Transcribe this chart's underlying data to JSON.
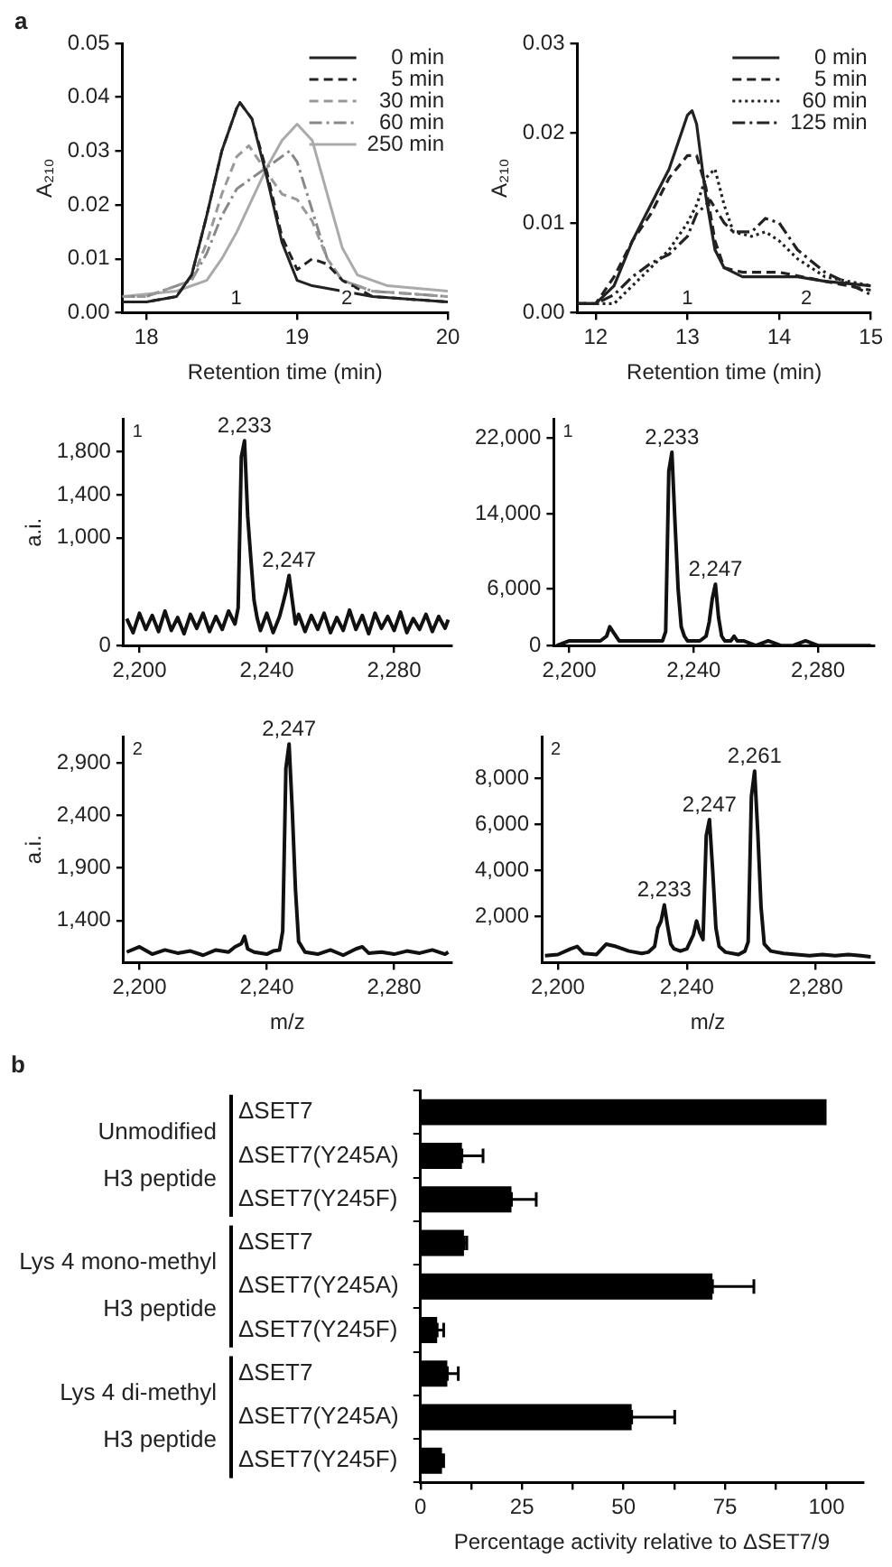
{
  "chart_data": [
    {
      "type": "line",
      "ylabel": "A₂₁₀",
      "xlabel": "Retention time (min)",
      "legend": "top right",
      "xlim": [
        17.84,
        20
      ],
      "xticks": [
        18,
        19,
        20
      ],
      "ylim": [
        0,
        0.05
      ],
      "yticks": [
        {
          "value": 0,
          "label": "0.00"
        },
        0.01,
        0.02,
        0.03,
        0.04,
        0.05
      ],
      "annotations": [
        "a",
        "1",
        "2"
      ],
      "series": [
        {
          "name": "0 min",
          "color": "#222222",
          "line_style": "solid",
          "x": [
            17.84,
            18.0,
            18.2,
            18.3,
            18.4,
            18.5,
            18.6,
            18.62,
            18.7,
            18.8,
            18.9,
            19.0,
            19.1,
            19.3,
            19.5,
            20.0
          ],
          "values": [
            0.002,
            0.002,
            0.003,
            0.007,
            0.018,
            0.03,
            0.038,
            0.039,
            0.036,
            0.025,
            0.013,
            0.006,
            0.005,
            0.004,
            0.003,
            0.002
          ]
        },
        {
          "name": "5 min",
          "color": "#222222",
          "line_style": "dashed",
          "x": [
            17.84,
            18.0,
            18.2,
            18.3,
            18.4,
            18.5,
            18.6,
            18.62,
            18.7,
            18.8,
            18.9,
            19.0,
            19.1,
            19.2,
            19.3,
            19.5,
            20.0
          ],
          "values": [
            0.002,
            0.002,
            0.003,
            0.007,
            0.018,
            0.03,
            0.038,
            0.039,
            0.036,
            0.026,
            0.014,
            0.008,
            0.01,
            0.009,
            0.006,
            0.003,
            0.002
          ]
        },
        {
          "name": "30 min",
          "color": "#999999",
          "line_style": "dashed",
          "x": [
            17.84,
            18.0,
            18.3,
            18.4,
            18.5,
            18.6,
            18.68,
            18.8,
            18.9,
            19.0,
            19.1,
            19.2,
            19.3,
            19.5,
            20.0
          ],
          "values": [
            0.003,
            0.003,
            0.006,
            0.013,
            0.022,
            0.029,
            0.031,
            0.026,
            0.022,
            0.021,
            0.017,
            0.01,
            0.006,
            0.004,
            0.003
          ]
        },
        {
          "name": "60 min",
          "color": "#888888",
          "line_style": "dashdot",
          "x": [
            17.84,
            18.0,
            18.3,
            18.4,
            18.5,
            18.6,
            18.7,
            18.8,
            18.9,
            18.95,
            19.0,
            19.1,
            19.2,
            19.3,
            19.5,
            20.0
          ],
          "values": [
            0.003,
            0.003,
            0.006,
            0.011,
            0.018,
            0.023,
            0.025,
            0.027,
            0.029,
            0.03,
            0.028,
            0.019,
            0.01,
            0.006,
            0.004,
            0.003
          ]
        },
        {
          "name": "250 min",
          "color": "#aaaaaa",
          "line_style": "solid",
          "x": [
            17.84,
            18.2,
            18.4,
            18.5,
            18.6,
            18.7,
            18.8,
            18.9,
            19.0,
            19.1,
            19.2,
            19.3,
            19.4,
            19.6,
            20.0
          ],
          "values": [
            0.003,
            0.004,
            0.006,
            0.01,
            0.015,
            0.021,
            0.027,
            0.032,
            0.035,
            0.032,
            0.022,
            0.012,
            0.007,
            0.005,
            0.004
          ]
        }
      ]
    },
    {
      "type": "line",
      "ylabel": "A₂₁₀",
      "xlabel": "Retention time (min)",
      "legend": "top right",
      "xlim": [
        11.8,
        15
      ],
      "xticks": [
        12,
        13,
        14,
        15
      ],
      "ylim": [
        0,
        0.03
      ],
      "yticks": [
        {
          "value": 0,
          "label": "0.00"
        },
        0.01,
        0.02,
        0.03
      ],
      "annotations": [
        "1",
        "2"
      ],
      "series": [
        {
          "name": "0 min",
          "color": "#222222",
          "line_style": "solid",
          "x": [
            11.8,
            12.0,
            12.2,
            12.4,
            12.6,
            12.8,
            12.9,
            13.0,
            13.05,
            13.1,
            13.2,
            13.3,
            13.4,
            13.6,
            14.0,
            14.2,
            14.5,
            15.0
          ],
          "values": [
            0.001,
            0.001,
            0.003,
            0.008,
            0.012,
            0.016,
            0.019,
            0.022,
            0.0225,
            0.021,
            0.013,
            0.007,
            0.005,
            0.004,
            0.004,
            0.004,
            0.0035,
            0.003
          ]
        },
        {
          "name": "5 min",
          "color": "#222222",
          "line_style": "dashed",
          "x": [
            11.8,
            12.0,
            12.2,
            12.4,
            12.6,
            12.8,
            13.0,
            13.1,
            13.2,
            13.3,
            13.4,
            13.6,
            14.0,
            14.5,
            15.0
          ],
          "values": [
            0.001,
            0.001,
            0.004,
            0.008,
            0.011,
            0.015,
            0.0175,
            0.0175,
            0.014,
            0.008,
            0.005,
            0.0045,
            0.0045,
            0.0035,
            0.0025
          ]
        },
        {
          "name": "60 min",
          "color": "#222222",
          "line_style": "dotted",
          "x": [
            11.8,
            12.0,
            12.2,
            12.4,
            12.6,
            12.8,
            13.0,
            13.1,
            13.2,
            13.3,
            13.4,
            13.5,
            13.7,
            13.85,
            14.0,
            14.2,
            14.5,
            15.0
          ],
          "values": [
            0.001,
            0.001,
            0.001,
            0.003,
            0.005,
            0.007,
            0.01,
            0.012,
            0.015,
            0.016,
            0.012,
            0.009,
            0.0085,
            0.009,
            0.008,
            0.006,
            0.004,
            0.003
          ]
        },
        {
          "name": "125 min",
          "color": "#222222",
          "line_style": "dashdot",
          "x": [
            11.8,
            12.0,
            12.2,
            12.4,
            12.6,
            12.8,
            13.0,
            13.1,
            13.25,
            13.4,
            13.5,
            13.7,
            13.85,
            14.0,
            14.2,
            14.5,
            15.0
          ],
          "values": [
            0.001,
            0.001,
            0.002,
            0.004,
            0.0055,
            0.0065,
            0.0085,
            0.011,
            0.0125,
            0.01,
            0.009,
            0.009,
            0.0105,
            0.01,
            0.007,
            0.0045,
            0.002
          ]
        }
      ]
    },
    {
      "type": "line",
      "ylabel": "a.i.",
      "xlim": [
        2195,
        2298
      ],
      "xticks": [
        {
          "value": 2200,
          "label": "2,200"
        },
        {
          "value": 2240,
          "label": "2,240"
        },
        {
          "value": 2280,
          "label": "2,280"
        }
      ],
      "ylim": [
        0,
        2100
      ],
      "yticks": [
        0,
        {
          "value": 1000,
          "label": "1,000"
        },
        {
          "value": 1400,
          "label": "1,400"
        },
        {
          "value": 1800,
          "label": "1,800"
        }
      ],
      "annotations": [
        "1",
        {
          "text": "2,233",
          "x": 2233,
          "y": 1900
        },
        {
          "text": "2,247",
          "x": 2247,
          "y": 650
        }
      ],
      "series": [
        {
          "color": "#111111",
          "x": [
            2196,
            2198,
            2200,
            2202,
            2204,
            2206,
            2208,
            2210,
            2212,
            2214,
            2216,
            2218,
            2220,
            2222,
            2224,
            2226,
            2228,
            2230,
            2231,
            2232,
            2233,
            2234,
            2235,
            2236,
            2237,
            2238,
            2240,
            2242,
            2244,
            2245,
            2246,
            2247,
            2248,
            2249,
            2250,
            2252,
            2254,
            2256,
            2258,
            2260,
            2262,
            2264,
            2266,
            2268,
            2270,
            2272,
            2274,
            2276,
            2278,
            2280,
            2282,
            2284,
            2286,
            2288,
            2290,
            2292,
            2294,
            2296,
            2297
          ],
          "values": [
            250,
            120,
            300,
            150,
            280,
            130,
            320,
            140,
            260,
            110,
            290,
            160,
            300,
            130,
            270,
            150,
            320,
            200,
            350,
            1750,
            1900,
            1200,
            800,
            420,
            250,
            140,
            300,
            120,
            270,
            380,
            500,
            650,
            420,
            200,
            290,
            130,
            280,
            150,
            300,
            120,
            260,
            140,
            330,
            150,
            280,
            110,
            300,
            160,
            270,
            140,
            310,
            120,
            250,
            150,
            290,
            130,
            270,
            160,
            240
          ]
        }
      ]
    },
    {
      "type": "line",
      "xlim": [
        2195,
        2298
      ],
      "xticks": [
        {
          "value": 2200,
          "label": "2,200"
        },
        {
          "value": 2240,
          "label": "2,240"
        },
        {
          "value": 2280,
          "label": "2,280"
        }
      ],
      "ylim": [
        0,
        24000
      ],
      "yticks": [
        0,
        {
          "value": 6000,
          "label": "6,000"
        },
        {
          "value": 14000,
          "label": "14,000"
        },
        {
          "value": 22000,
          "label": "22,000"
        }
      ],
      "annotations": [
        "1",
        {
          "text": "2,233",
          "x": 2233,
          "y": 20500
        },
        {
          "text": "2,247",
          "x": 2247,
          "y": 6500
        }
      ],
      "series": [
        {
          "color": "#111111",
          "x": [
            2196,
            2200,
            2204,
            2208,
            2210,
            2212,
            2213,
            2214,
            2216,
            2220,
            2224,
            2228,
            2230,
            2231,
            2232,
            2233,
            2234,
            2235,
            2236,
            2237,
            2238,
            2240,
            2242,
            2244,
            2245,
            2246,
            2247,
            2248,
            2249,
            2250,
            2252,
            2253,
            2254,
            2256,
            2260,
            2264,
            2268,
            2272,
            2276,
            2280,
            2284,
            2288,
            2292,
            2296,
            2297
          ],
          "values": [
            0,
            500,
            500,
            500,
            500,
            1000,
            2000,
            1500,
            500,
            500,
            500,
            500,
            500,
            1500,
            18500,
            20500,
            13000,
            6000,
            2000,
            1000,
            500,
            500,
            500,
            1000,
            2500,
            5000,
            6500,
            3000,
            1000,
            500,
            500,
            1000,
            500,
            500,
            0,
            500,
            0,
            0,
            500,
            0,
            0,
            0,
            0,
            0,
            0
          ]
        }
      ]
    },
    {
      "type": "line",
      "ylabel": "a.i.",
      "xlabel": "m/z",
      "xlim": [
        2195,
        2298
      ],
      "xticks": [
        {
          "value": 2200,
          "label": "2,200"
        },
        {
          "value": 2240,
          "label": "2,240"
        },
        {
          "value": 2280,
          "label": "2,280"
        }
      ],
      "ylim": [
        1000,
        3150
      ],
      "yticks": [
        {
          "value": 1400,
          "label": "1,400"
        },
        {
          "value": 1900,
          "label": "1,900"
        },
        {
          "value": 2400,
          "label": "2,400"
        },
        {
          "value": 2900,
          "label": "2,900"
        }
      ],
      "annotations": [
        "2",
        {
          "text": "2,247",
          "x": 2247,
          "y": 3080
        }
      ],
      "series": [
        {
          "color": "#111111",
          "x": [
            2196,
            2200,
            2204,
            2208,
            2212,
            2216,
            2220,
            2224,
            2228,
            2230,
            2232,
            2233,
            2234,
            2236,
            2240,
            2242,
            2244,
            2245,
            2246,
            2247,
            2248,
            2249,
            2250,
            2252,
            2256,
            2260,
            2264,
            2268,
            2270,
            2272,
            2276,
            2280,
            2284,
            2288,
            2292,
            2296,
            2297
          ],
          "values": [
            1100,
            1150,
            1080,
            1120,
            1090,
            1110,
            1070,
            1120,
            1100,
            1150,
            1180,
            1250,
            1130,
            1100,
            1080,
            1110,
            1120,
            1300,
            2850,
            3080,
            2450,
            1700,
            1200,
            1100,
            1080,
            1120,
            1070,
            1130,
            1150,
            1090,
            1100,
            1080,
            1110,
            1090,
            1120,
            1080,
            1100
          ]
        }
      ]
    },
    {
      "type": "line",
      "xlabel": "m/z",
      "xlim": [
        2195,
        2298
      ],
      "xticks": [
        {
          "value": 2200,
          "label": "2,200"
        },
        {
          "value": 2240,
          "label": "2,240"
        },
        {
          "value": 2280,
          "label": "2,280"
        }
      ],
      "ylim": [
        0,
        9800
      ],
      "yticks": [
        {
          "value": 2000,
          "label": "2,000"
        },
        {
          "value": 4000,
          "label": "4,000"
        },
        {
          "value": 6000,
          "label": "6,000"
        },
        {
          "value": 8000,
          "label": "8,000"
        }
      ],
      "annotations": [
        "2",
        {
          "text": "2,233",
          "x": 2233,
          "y": 2500
        },
        {
          "text": "2,247",
          "x": 2247,
          "y": 6200
        },
        {
          "text": "2,261",
          "x": 2261,
          "y": 8300
        }
      ],
      "series": [
        {
          "color": "#111111",
          "x": [
            2196,
            2200,
            2204,
            2206,
            2208,
            2212,
            2215,
            2218,
            2222,
            2226,
            2228,
            2230,
            2231,
            2232,
            2233,
            2234,
            2235,
            2236,
            2238,
            2240,
            2242,
            2243,
            2244,
            2245,
            2246,
            2247,
            2248,
            2249,
            2250,
            2252,
            2256,
            2258,
            2259,
            2260,
            2261,
            2262,
            2263,
            2264,
            2266,
            2270,
            2274,
            2278,
            2282,
            2286,
            2290,
            2294,
            2297
          ],
          "values": [
            300,
            350,
            600,
            700,
            400,
            350,
            800,
            700,
            500,
            400,
            450,
            700,
            1500,
            1800,
            2500,
            1600,
            800,
            600,
            500,
            600,
            1200,
            1800,
            1300,
            1000,
            5500,
            6200,
            4000,
            1500,
            700,
            450,
            350,
            500,
            900,
            7200,
            8300,
            5600,
            2400,
            800,
            500,
            400,
            350,
            300,
            350,
            300,
            350,
            300,
            250
          ]
        }
      ]
    },
    {
      "type": "bar",
      "orientation": "horizontal",
      "xlabel": "Percentage activity relative to ΔSET7/9",
      "categories": [
        "ΔSET7",
        "ΔSET7(Y245A)",
        "ΔSET7(Y245F)",
        "ΔSET7",
        "ΔSET7(Y245A)",
        "ΔSET7(Y245F)",
        "ΔSET7",
        "ΔSET7(Y245A)",
        "ΔSET7(Y245F)"
      ],
      "values": [
        100,
        10.2,
        22.4,
        10.7,
        71.9,
        4.1,
        6.6,
        52.0,
        5.3
      ],
      "errors": [
        null,
        [
          10.2,
          15.4
        ],
        [
          22.4,
          28.5
        ],
        [
          10.7,
          11.4
        ],
        [
          71.9,
          82.1
        ],
        [
          4.1,
          5.7
        ],
        [
          6.6,
          9.3
        ],
        [
          52.0,
          62.6
        ],
        [
          5.3,
          5.7
        ]
      ],
      "color": "#000000",
      "xlim": [
        0,
        109
      ],
      "xticks": [
        0,
        {
          "value": 12.5,
          "label": null
        },
        25,
        {
          "value": 37.5,
          "label": null
        },
        50,
        {
          "value": 62.5,
          "label": null
        },
        75,
        {
          "value": 87.5,
          "label": null
        },
        100
      ],
      "annotations": [
        "b",
        "Unmodified H3 peptide",
        "Lys 4 mono-methyl H3 peptide",
        "Lys 4 di-methyl H3 peptide"
      ]
    }
  ]
}
